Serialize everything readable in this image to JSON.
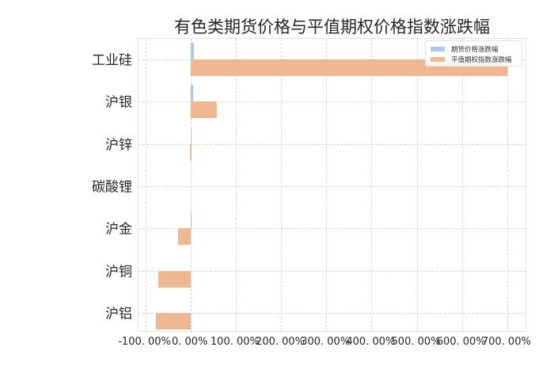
{
  "chart_data": {
    "type": "bar",
    "orientation": "horizontal",
    "title": "有色类期货价格与平值期权价格指数涨跌幅",
    "xlabel": "",
    "ylabel": "",
    "categories": [
      "工业硅",
      "沪银",
      "沪锌",
      "碳酸锂",
      "沪金",
      "沪铜",
      "沪铝"
    ],
    "series": [
      {
        "name": "期货价格涨跌幅",
        "color": "#a9c8ec",
        "values": [
          8.0,
          5.0,
          2.0,
          0.0,
          0.5,
          0.0,
          0.0
        ]
      },
      {
        "name": "平值期权指数涨跌幅",
        "color": "#f0b891",
        "values": [
          700.0,
          58.0,
          -1.0,
          0.0,
          -28.0,
          -72.0,
          -76.0
        ]
      }
    ],
    "xlim": [
      -115,
      744
    ],
    "xticks": [
      -100,
      0,
      100,
      200,
      300,
      400,
      500,
      600,
      700
    ],
    "xtick_labels": [
      "-100. 00%",
      "0. 00%",
      "100. 00%",
      "200. 00%",
      "300. 00%",
      "400. 00%",
      "500. 00%",
      "600. 00%",
      "700. 00%"
    ],
    "grid": true,
    "legend_position": "upper right"
  },
  "legend": {
    "items": [
      {
        "label": "期货价格涨跌幅",
        "color": "#a9c8ec"
      },
      {
        "label": "平值期权指数涨跌幅",
        "color": "#f0b891"
      }
    ]
  }
}
